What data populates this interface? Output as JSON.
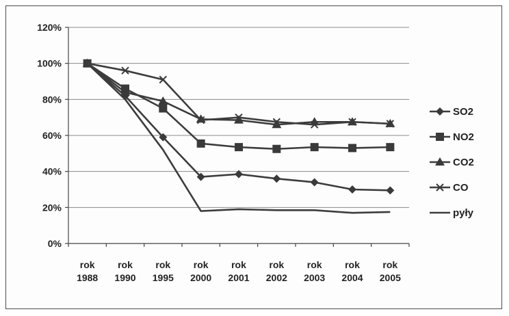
{
  "chart_data": {
    "type": "line",
    "title": "",
    "xlabel": "",
    "ylabel": "",
    "categories": [
      [
        "rok",
        "1988"
      ],
      [
        "rok",
        "1990"
      ],
      [
        "rok",
        "1995"
      ],
      [
        "rok",
        "2000"
      ],
      [
        "rok",
        "2001"
      ],
      [
        "rok",
        "2002"
      ],
      [
        "rok",
        "2003"
      ],
      [
        "rok",
        "2004"
      ],
      [
        "rok",
        "2005"
      ]
    ],
    "ylim": [
      0,
      120
    ],
    "yticks": [
      "0%",
      "20%",
      "40%",
      "60%",
      "80%",
      "100%",
      "120%"
    ],
    "grid": true,
    "legend_position": "right",
    "series": [
      {
        "name": "SO2",
        "marker": "diamond",
        "values": [
          100,
          82,
          59,
          37,
          38.5,
          36,
          34,
          30,
          29.5
        ]
      },
      {
        "name": "NO2",
        "marker": "square",
        "values": [
          100,
          86,
          75,
          55.5,
          53.5,
          52.5,
          53.5,
          53,
          53.5
        ]
      },
      {
        "name": "CO2",
        "marker": "triangle",
        "values": [
          100,
          84,
          79,
          69,
          68.5,
          66,
          67.5,
          67.5,
          66.5
        ]
      },
      {
        "name": "CO",
        "marker": "x",
        "values": [
          100,
          96,
          91,
          68.5,
          70,
          67.5,
          66,
          67.5,
          66.5
        ]
      },
      {
        "name": "pyły",
        "marker": "none",
        "values": [
          100,
          80,
          52,
          18,
          19,
          18.5,
          18.5,
          17,
          17.5
        ]
      }
    ]
  }
}
